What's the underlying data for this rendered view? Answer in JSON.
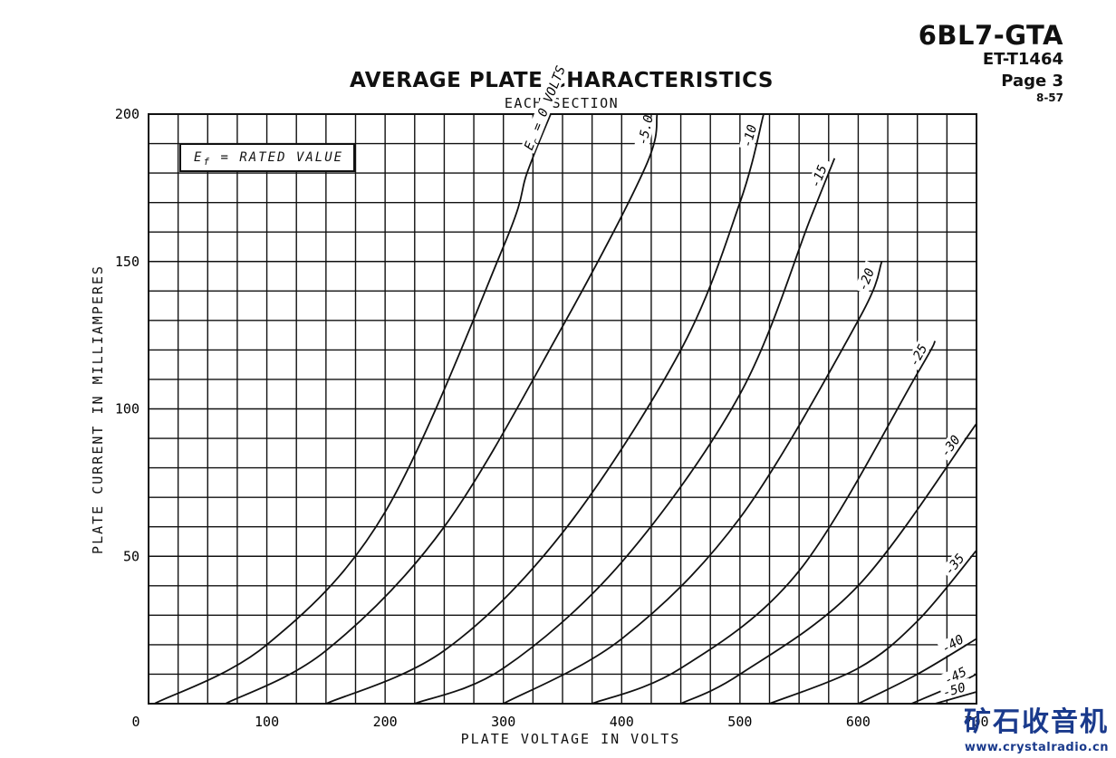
{
  "header": {
    "tube_type": "6BL7-GTA",
    "et_number": "ET-T1464",
    "page": "Page 3",
    "date": "8-57"
  },
  "note": "E  = RATED VALUE",
  "note_subscript": "f",
  "watermark": {
    "cn_text": "矿石收音机",
    "url": "www.crystalradio.cn"
  },
  "chart_data": {
    "type": "line",
    "title": "AVERAGE PLATE CHARACTERISTICS",
    "subtitle": "EACH SECTION",
    "xlabel": "PLATE VOLTAGE IN VOLTS",
    "ylabel": "PLATE CURRENT IN MILLIAMPERES",
    "xlim": [
      0,
      700
    ],
    "ylim": [
      0,
      200
    ],
    "x_ticks": [
      0,
      100,
      200,
      300,
      400,
      500,
      600,
      700
    ],
    "y_ticks": [
      50,
      100,
      150,
      200
    ],
    "x_tick_labels": [
      "0",
      "100",
      "200",
      "300",
      "400",
      "500",
      "600",
      "700"
    ],
    "y_tick_labels": [
      "50",
      "100",
      "150",
      "200"
    ],
    "grid": true,
    "series": [
      {
        "name": "Ec = 0 VOLTS",
        "label": "E  = 0 VOLTS",
        "label_sub": "c",
        "x_start": 5,
        "points": [
          [
            5,
            0
          ],
          [
            100,
            20
          ],
          [
            200,
            65
          ],
          [
            300,
            155
          ],
          [
            320,
            180
          ],
          [
            340,
            200
          ]
        ]
      },
      {
        "name": "-5.0",
        "label": "-5.0",
        "x_start": 65,
        "points": [
          [
            65,
            0
          ],
          [
            150,
            18
          ],
          [
            250,
            60
          ],
          [
            350,
            128
          ],
          [
            420,
            182
          ],
          [
            430,
            200
          ]
        ]
      },
      {
        "name": "-10",
        "label": "-10",
        "x_start": 150,
        "points": [
          [
            150,
            0
          ],
          [
            250,
            18
          ],
          [
            350,
            58
          ],
          [
            450,
            120
          ],
          [
            500,
            170
          ],
          [
            520,
            200
          ]
        ]
      },
      {
        "name": "-15",
        "label": "-15",
        "x_start": 225,
        "points": [
          [
            225,
            0
          ],
          [
            300,
            12
          ],
          [
            400,
            48
          ],
          [
            500,
            105
          ],
          [
            560,
            165
          ],
          [
            580,
            185
          ]
        ]
      },
      {
        "name": "-20",
        "label": "-20",
        "x_start": 300,
        "points": [
          [
            300,
            0
          ],
          [
            400,
            22
          ],
          [
            500,
            63
          ],
          [
            600,
            130
          ],
          [
            620,
            150
          ]
        ]
      },
      {
        "name": "-25",
        "label": "-25",
        "x_start": 375,
        "points": [
          [
            375,
            0
          ],
          [
            450,
            12
          ],
          [
            550,
            45
          ],
          [
            650,
            112
          ],
          [
            665,
            123
          ]
        ]
      },
      {
        "name": "-30",
        "label": "-30",
        "x_start": 450,
        "points": [
          [
            450,
            0
          ],
          [
            500,
            10
          ],
          [
            600,
            40
          ],
          [
            700,
            95
          ]
        ]
      },
      {
        "name": "-35",
        "label": "-35",
        "x_start": 525,
        "points": [
          [
            525,
            0
          ],
          [
            600,
            12
          ],
          [
            650,
            28
          ],
          [
            700,
            52
          ]
        ]
      },
      {
        "name": "-40",
        "label": "-40",
        "x_start": 600,
        "points": [
          [
            600,
            0
          ],
          [
            650,
            10
          ],
          [
            700,
            22
          ]
        ]
      },
      {
        "name": "-45",
        "label": "-45",
        "x_start": 645,
        "points": [
          [
            645,
            0
          ],
          [
            680,
            6
          ],
          [
            700,
            10
          ]
        ]
      },
      {
        "name": "-50",
        "label": "-50",
        "x_start": 665,
        "points": [
          [
            665,
            0
          ],
          [
            700,
            4
          ]
        ]
      }
    ]
  }
}
